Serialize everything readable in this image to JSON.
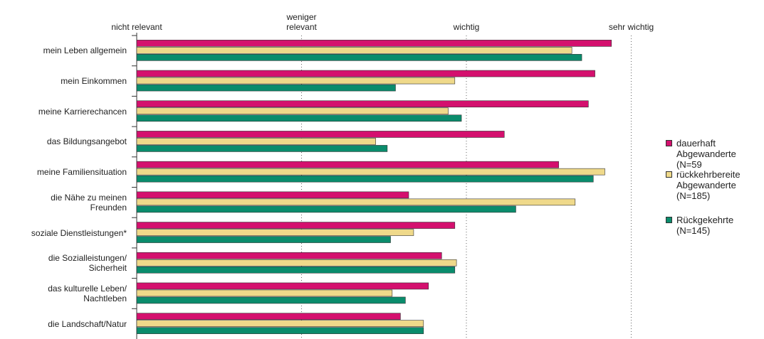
{
  "chart_data": {
    "type": "bar",
    "orientation": "horizontal",
    "categories": [
      "mein Leben allgemein",
      "mein Einkommen",
      "meine Karrierechancen",
      "das Bildungsangebot",
      "meine Familiensituation",
      "die Nähe zu meinen Freunden",
      "soziale Dienstleistungen*",
      "die Sozialleistungen/ Sicherheit",
      "das kulturelle Leben/ Nachtleben",
      "die Landschaft/Natur"
    ],
    "series": [
      {
        "name": "dauerhaft Abgewanderte (N=59",
        "color": "#d4106e",
        "values": [
          3.88,
          3.78,
          3.74,
          3.23,
          3.56,
          2.65,
          2.93,
          2.85,
          2.77,
          2.6
        ]
      },
      {
        "name": "rückkehrbereite Abgewanderte (N=185)",
        "color": "#efd98a",
        "values": [
          3.64,
          2.93,
          2.89,
          2.45,
          3.84,
          3.66,
          2.68,
          2.94,
          2.55,
          2.74
        ]
      },
      {
        "name": "Rückgekehrte (N=145)",
        "color": "#0a8c6c",
        "values": [
          3.7,
          2.57,
          2.97,
          2.52,
          3.77,
          3.3,
          2.54,
          2.93,
          2.63,
          2.74
        ]
      }
    ],
    "xlim": [
      1,
      4
    ],
    "xticks": [
      {
        "value": 1,
        "label": "nicht relevant"
      },
      {
        "value": 2,
        "label": "weniger relevant"
      },
      {
        "value": 3,
        "label": "wichtig"
      },
      {
        "value": 4,
        "label": "sehr wichtig"
      }
    ],
    "grid": true,
    "legend": "right"
  }
}
